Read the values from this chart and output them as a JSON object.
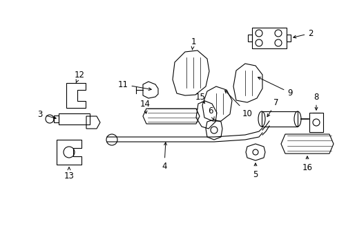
{
  "background_color": "#ffffff",
  "line_color": "#000000",
  "fig_width": 4.89,
  "fig_height": 3.6,
  "dpi": 100,
  "label_fontsize": 8.5
}
